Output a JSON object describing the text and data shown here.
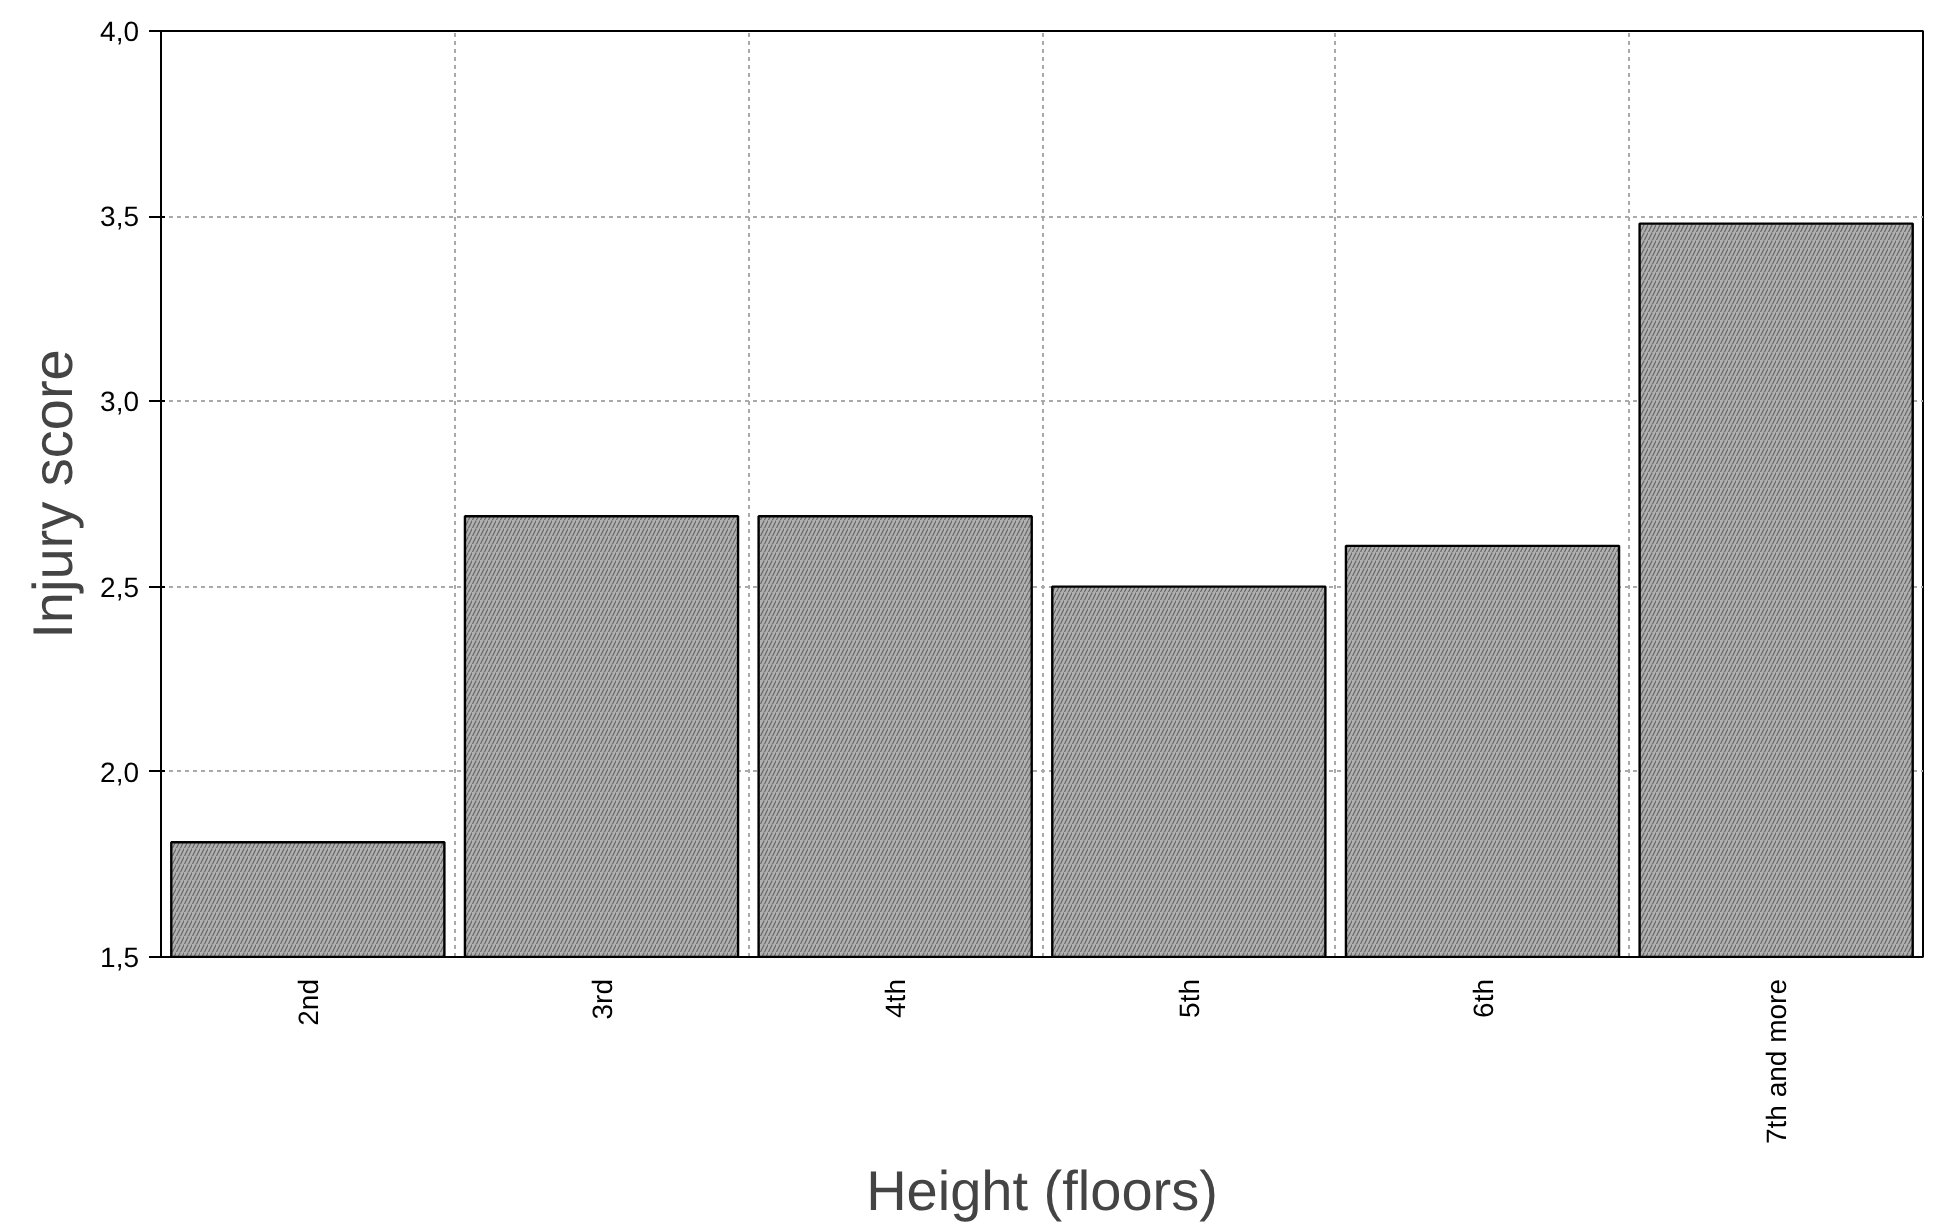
{
  "chart_data": {
    "type": "bar",
    "xlabel": "Height (floors)",
    "ylabel": "Injury score",
    "categories": [
      "2nd",
      "3rd",
      "4th",
      "5th",
      "6th",
      "7th and more"
    ],
    "values": [
      1.81,
      2.69,
      2.69,
      2.5,
      2.61,
      3.48
    ],
    "color": "#b0b0b0",
    "ylim": [
      1.5,
      4.0
    ],
    "yticks": [
      {
        "value": 1.5,
        "label": "1,5"
      },
      {
        "value": 2.0,
        "label": "2,0"
      },
      {
        "value": 2.5,
        "label": "2,5"
      },
      {
        "value": 3.0,
        "label": "3,0"
      },
      {
        "value": 3.5,
        "label": "3,5"
      },
      {
        "value": 4.0,
        "label": "4,0"
      }
    ],
    "grid": true
  }
}
